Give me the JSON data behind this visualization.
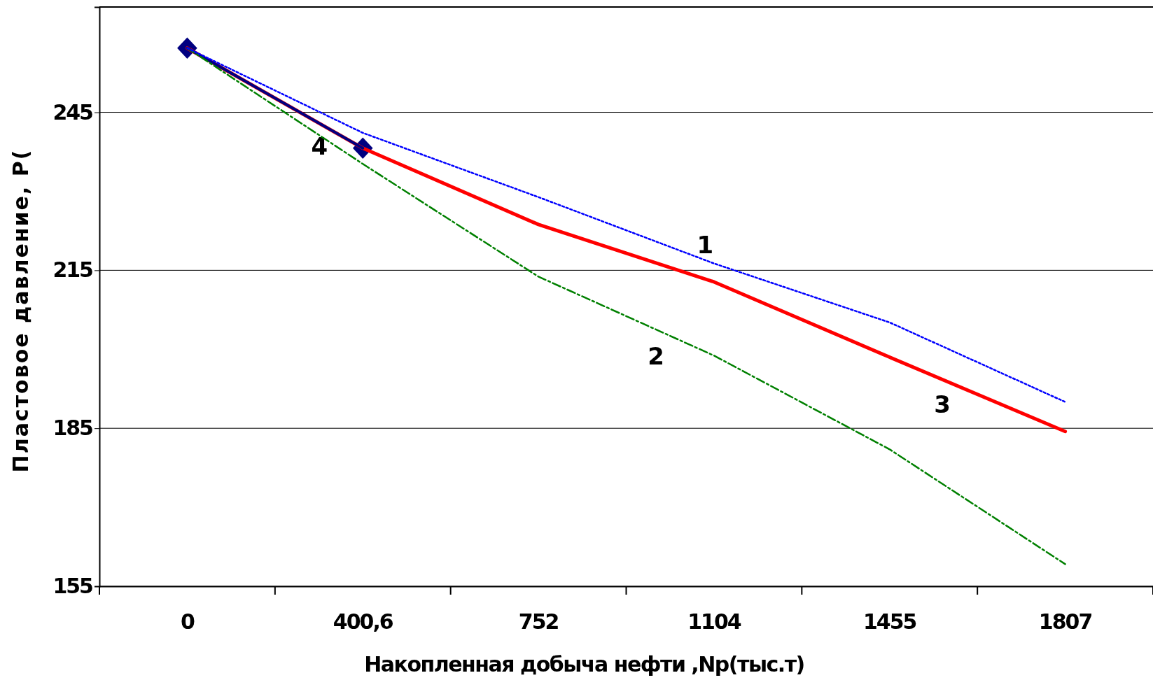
{
  "chart_data": {
    "type": "line",
    "xlabel": "Накопленная добыча нефти ,Np(тыс.т)",
    "ylabel": "Пластовое давление, Р(",
    "categories": [
      "0",
      "400,6",
      "752",
      "1104",
      "1455",
      "1807"
    ],
    "ylim": [
      155,
      265
    ],
    "yticks": [
      155,
      185,
      215,
      245
    ],
    "grid": "y",
    "series": [
      {
        "name": "4",
        "color": "#000080",
        "line_style": "solid",
        "marker": "diamond",
        "values": [
          257.2,
          238.2,
          null,
          null,
          null,
          null
        ]
      },
      {
        "name": "1",
        "color": "#0000ff",
        "line_style": "dotted",
        "marker": "none",
        "values": [
          257.2,
          241.1,
          228.9,
          216.3,
          205.1,
          190.0
        ]
      },
      {
        "name": "2",
        "color": "#008000",
        "line_style": "dashed",
        "marker": "none",
        "values": [
          257.2,
          235.2,
          213.8,
          198.8,
          181.0,
          159.2
        ]
      },
      {
        "name": "3",
        "color": "#ff0000",
        "line_style": "solid",
        "marker": "none",
        "values": [
          257.2,
          238.2,
          223.7,
          212.8,
          198.5,
          184.4
        ]
      }
    ]
  }
}
